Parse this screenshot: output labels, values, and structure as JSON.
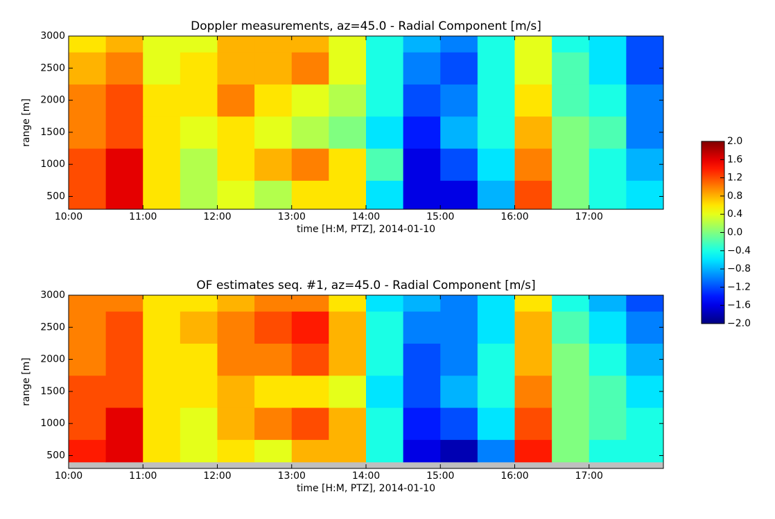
{
  "chart_data": [
    {
      "type": "heatmap",
      "title": "Doppler measurements, az=45.0 - Radial Component [m/s]",
      "x_label": "time [H:M, PTZ], 2014-01-10",
      "y_label": "range [m]",
      "xlim": [
        10,
        18
      ],
      "ylim": [
        300,
        3000
      ],
      "xticks": [
        {
          "value": 10,
          "label": "10:00"
        },
        {
          "value": 11,
          "label": "11:00"
        },
        {
          "value": 12,
          "label": "12:00"
        },
        {
          "value": 13,
          "label": "13:00"
        },
        {
          "value": 14,
          "label": "14:00"
        },
        {
          "value": 15,
          "label": "15:00"
        },
        {
          "value": 16,
          "label": "16:00"
        },
        {
          "value": 17,
          "label": "17:00"
        }
      ],
      "yticks": [
        500,
        1000,
        1500,
        2000,
        2500,
        3000
      ],
      "x_edges": [
        10,
        10.5,
        11,
        11.5,
        12,
        12.5,
        13,
        13.5,
        14,
        14.5,
        15,
        15.5,
        16,
        16.5,
        17,
        17.5,
        18
      ],
      "y_edges": [
        300,
        750,
        1250,
        1750,
        2250,
        2750,
        3000
      ],
      "values": [
        [
          1.2,
          1.6,
          0.6,
          0.2,
          0.4,
          0.2,
          0.6,
          0.6,
          -0.6,
          -1.6,
          -1.6,
          -0.8,
          1.2,
          0.0,
          -0.4,
          -0.6
        ],
        [
          1.2,
          1.6,
          0.6,
          0.2,
          0.6,
          0.8,
          1.0,
          0.6,
          -0.2,
          -1.6,
          -1.2,
          -0.6,
          1.0,
          0.0,
          -0.4,
          -0.8
        ],
        [
          1.0,
          1.2,
          0.6,
          0.4,
          0.6,
          0.4,
          0.2,
          0.0,
          -0.6,
          -1.4,
          -0.8,
          -0.4,
          0.8,
          0.0,
          -0.2,
          -1.0
        ],
        [
          1.0,
          1.2,
          0.6,
          0.6,
          1.0,
          0.6,
          0.4,
          0.2,
          -0.4,
          -1.2,
          -1.0,
          -0.4,
          0.6,
          -0.2,
          -0.4,
          -1.0
        ],
        [
          0.8,
          1.0,
          0.4,
          0.6,
          0.8,
          0.8,
          1.0,
          0.4,
          -0.4,
          -1.0,
          -1.2,
          -0.4,
          0.4,
          -0.2,
          -0.6,
          -1.2
        ],
        [
          0.6,
          0.8,
          0.4,
          0.4,
          0.8,
          0.8,
          0.8,
          0.4,
          -0.4,
          -0.8,
          -1.0,
          -0.4,
          0.4,
          -0.4,
          -0.6,
          -1.2
        ]
      ]
    },
    {
      "type": "heatmap",
      "title": "OF estimates seq. #1, az=45.0 - Radial Component [m/s]",
      "x_label": "time [H:M, PTZ], 2014-01-10",
      "y_label": "range [m]",
      "xlim": [
        10,
        18
      ],
      "ylim": [
        300,
        3000
      ],
      "missing_color": "#bfbfbf",
      "xticks": [
        {
          "value": 10,
          "label": "10:00"
        },
        {
          "value": 11,
          "label": "11:00"
        },
        {
          "value": 12,
          "label": "12:00"
        },
        {
          "value": 13,
          "label": "13:00"
        },
        {
          "value": 14,
          "label": "14:00"
        },
        {
          "value": 15,
          "label": "15:00"
        },
        {
          "value": 16,
          "label": "16:00"
        },
        {
          "value": 17,
          "label": "17:00"
        }
      ],
      "yticks": [
        500,
        1000,
        1500,
        2000,
        2500,
        3000
      ],
      "x_edges": [
        10,
        10.5,
        11,
        11.5,
        12,
        12.5,
        13,
        13.5,
        14,
        14.5,
        15,
        15.5,
        16,
        16.5,
        17,
        17.5,
        18
      ],
      "y_edges": [
        400,
        750,
        1250,
        1750,
        2250,
        2750,
        3000
      ],
      "values": [
        [
          1.4,
          1.6,
          0.6,
          0.4,
          0.6,
          0.4,
          0.8,
          0.8,
          -0.4,
          -1.6,
          -1.8,
          -1.0,
          1.4,
          0.0,
          -0.4,
          -0.4
        ],
        [
          1.2,
          1.6,
          0.6,
          0.4,
          0.8,
          1.0,
          1.2,
          0.8,
          -0.4,
          -1.4,
          -1.2,
          -0.6,
          1.2,
          0.0,
          -0.2,
          -0.4
        ],
        [
          1.2,
          1.2,
          0.6,
          0.6,
          0.8,
          0.6,
          0.6,
          0.4,
          -0.6,
          -1.2,
          -0.8,
          -0.4,
          1.0,
          0.0,
          -0.2,
          -0.6
        ],
        [
          1.0,
          1.2,
          0.6,
          0.6,
          1.0,
          1.0,
          1.2,
          0.8,
          -0.4,
          -1.2,
          -1.0,
          -0.4,
          0.8,
          0.0,
          -0.4,
          -0.8
        ],
        [
          1.0,
          1.2,
          0.6,
          0.8,
          1.0,
          1.2,
          1.4,
          0.8,
          -0.4,
          -1.0,
          -1.0,
          -0.6,
          0.8,
          -0.2,
          -0.6,
          -1.0
        ],
        [
          1.0,
          1.0,
          0.6,
          0.6,
          0.8,
          1.0,
          1.0,
          0.6,
          -0.6,
          -0.8,
          -1.0,
          -0.6,
          0.6,
          -0.4,
          -0.8,
          -1.2
        ]
      ]
    },
    {
      "type": "colorbar",
      "colormap": "jet",
      "clim": [
        -2.0,
        2.0
      ],
      "ticks": [
        {
          "value": 2.0,
          "label": "2.0"
        },
        {
          "value": 1.6,
          "label": "1.6"
        },
        {
          "value": 1.2,
          "label": "1.2"
        },
        {
          "value": 0.8,
          "label": "0.8"
        },
        {
          "value": 0.4,
          "label": "0.4"
        },
        {
          "value": 0.0,
          "label": "0.0"
        },
        {
          "value": -0.4,
          "label": "−0.4"
        },
        {
          "value": -0.8,
          "label": "−0.8"
        },
        {
          "value": -1.2,
          "label": "−1.2"
        },
        {
          "value": -1.6,
          "label": "−1.6"
        },
        {
          "value": -2.0,
          "label": "−2.0"
        }
      ]
    }
  ]
}
